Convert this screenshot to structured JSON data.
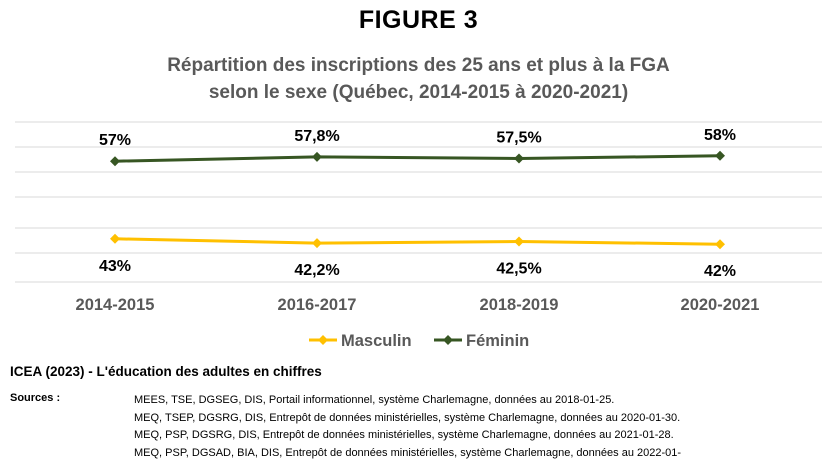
{
  "figure_label": "FIGURE 3",
  "subtitle_line1": "Répartition des inscriptions des 25 ans et plus à la FGA",
  "subtitle_line2": "selon le sexe (Québec, 2014-2015 à 2020-2021)",
  "chart_data": {
    "type": "line",
    "categories": [
      "2014-2015",
      "2016-2017",
      "2018-2019",
      "2020-2021"
    ],
    "ylim": [
      0,
      100
    ],
    "grid": true,
    "legend_position": "bottom",
    "series": [
      {
        "name": "Masculin",
        "color": "#FFC000",
        "marker": "diamond",
        "values": [
          43,
          42.2,
          42.5,
          42
        ],
        "labels": [
          "43%",
          "42,2%",
          "42,5%",
          "42%"
        ]
      },
      {
        "name": "Féminin",
        "color": "#375623",
        "marker": "diamond",
        "values": [
          57,
          57.8,
          57.5,
          58
        ],
        "labels": [
          "57%",
          "57,8%",
          "57,5%",
          "58%"
        ]
      }
    ]
  },
  "source_title": "ICEA (2023) - L'éducation des adultes en chiffres",
  "sources_label": "Sources :",
  "sources": [
    "MEES, TSE, DGSEG, DIS, Portail informationnel, système Charlemagne, données au 2018-01-25.",
    "MEQ, TSEP, DGSRG, DIS, Entrepôt de données ministérielles, système Charlemagne, données au 2020-01-30.",
    "MEQ, PSP, DGSRG, DIS, Entrepôt de données ministérielles, système Charlemagne, données au 2021-01-28.",
    "MEQ, PSP, DGSAD, BIA, DIS, Entrepôt de données ministérielles, système Charlemagne, données au 2022-01-"
  ]
}
